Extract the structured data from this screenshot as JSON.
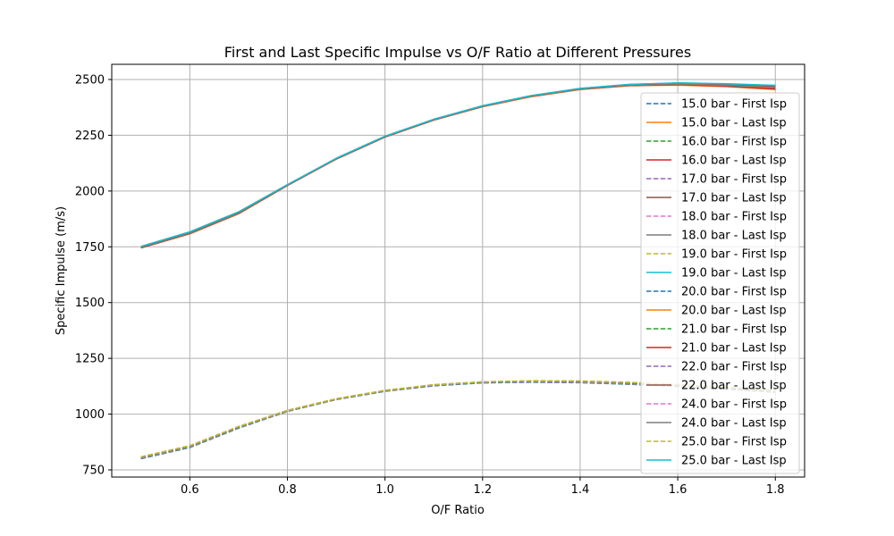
{
  "chart_data": {
    "type": "line",
    "title": "First and Last Specific Impulse vs O/F Ratio at Different Pressures",
    "xlabel": "O/F Ratio",
    "ylabel": "Specific Impulse (m/s)",
    "xlim": [
      0.44,
      1.86
    ],
    "ylim": [
      718,
      2568
    ],
    "xticks": [
      0.6,
      0.8,
      1.0,
      1.2,
      1.4,
      1.6,
      1.8
    ],
    "xtick_labels": [
      "0.6",
      "0.8",
      "1.0",
      "1.2",
      "1.4",
      "1.6",
      "1.8"
    ],
    "yticks": [
      750,
      1000,
      1250,
      1500,
      1750,
      2000,
      2250,
      2500
    ],
    "ytick_labels": [
      "750",
      "1000",
      "1250",
      "1500",
      "1750",
      "2000",
      "2250",
      "2500"
    ],
    "grid": true,
    "legend_position": "right",
    "x": [
      0.5,
      0.6,
      0.7,
      0.8,
      0.9,
      1.0,
      1.1,
      1.2,
      1.3,
      1.4,
      1.5,
      1.6,
      1.7,
      1.8
    ],
    "series": [
      {
        "name": "15.0 bar - First Isp",
        "color": "#1f77b4",
        "dashed": true,
        "values": [
          800,
          850,
          937,
          1012,
          1065,
          1102,
          1127,
          1140,
          1143,
          1141,
          1134,
          1124,
          1112,
          1098
        ]
      },
      {
        "name": "15.0 bar - Last Isp",
        "color": "#ff7f0e",
        "dashed": false,
        "values": [
          1745,
          1808,
          1898,
          2025,
          2143,
          2242,
          2318,
          2378,
          2423,
          2455,
          2472,
          2475,
          2468,
          2455
        ]
      },
      {
        "name": "16.0 bar - First Isp",
        "color": "#2ca02c",
        "dashed": true,
        "values": [
          801,
          851,
          938,
          1013,
          1066,
          1103,
          1128,
          1141,
          1144,
          1142,
          1135,
          1125,
          1113,
          1099
        ]
      },
      {
        "name": "16.0 bar - Last Isp",
        "color": "#d62728",
        "dashed": false,
        "values": [
          1745,
          1809,
          1899,
          2025,
          2143,
          2242,
          2318,
          2378,
          2424,
          2456,
          2473,
          2477,
          2470,
          2458
        ]
      },
      {
        "name": "17.0 bar - First Isp",
        "color": "#9467bd",
        "dashed": true,
        "values": [
          802,
          852,
          939,
          1013,
          1066,
          1103,
          1129,
          1142,
          1145,
          1143,
          1136,
          1126,
          1114,
          1100
        ]
      },
      {
        "name": "17.0 bar - Last Isp",
        "color": "#8c564b",
        "dashed": false,
        "values": [
          1746,
          1810,
          1900,
          2026,
          2144,
          2243,
          2319,
          2379,
          2425,
          2457,
          2474,
          2479,
          2472,
          2462
        ]
      },
      {
        "name": "18.0 bar - First Isp",
        "color": "#e377c2",
        "dashed": true,
        "values": [
          803,
          853,
          940,
          1014,
          1067,
          1104,
          1129,
          1142,
          1146,
          1144,
          1137,
          1127,
          1115,
          1101
        ]
      },
      {
        "name": "18.0 bar - Last Isp",
        "color": "#7f7f7f",
        "dashed": false,
        "values": [
          1747,
          1811,
          1901,
          2026,
          2144,
          2243,
          2319,
          2379,
          2425,
          2457,
          2475,
          2480,
          2474,
          2465
        ]
      },
      {
        "name": "19.0 bar - First Isp",
        "color": "#bcbd22",
        "dashed": true,
        "values": [
          804,
          854,
          941,
          1014,
          1067,
          1104,
          1130,
          1143,
          1147,
          1145,
          1138,
          1128,
          1116,
          1102
        ]
      },
      {
        "name": "19.0 bar - Last Isp",
        "color": "#17becf",
        "dashed": false,
        "values": [
          1748,
          1812,
          1902,
          2027,
          2145,
          2244,
          2320,
          2380,
          2426,
          2458,
          2476,
          2481,
          2476,
          2467
        ]
      },
      {
        "name": "20.0 bar - First Isp",
        "color": "#1f77b4",
        "dashed": true,
        "values": [
          805,
          855,
          941,
          1015,
          1068,
          1105,
          1130,
          1143,
          1147,
          1146,
          1139,
          1129,
          1117,
          1103
        ]
      },
      {
        "name": "20.0 bar - Last Isp",
        "color": "#ff7f0e",
        "dashed": false,
        "values": [
          1749,
          1813,
          1903,
          2027,
          2145,
          2244,
          2320,
          2380,
          2426,
          2458,
          2476,
          2482,
          2477,
          2469
        ]
      },
      {
        "name": "21.0 bar - First Isp",
        "color": "#2ca02c",
        "dashed": true,
        "values": [
          806,
          856,
          942,
          1015,
          1068,
          1105,
          1131,
          1144,
          1148,
          1147,
          1140,
          1130,
          1118,
          1104
        ]
      },
      {
        "name": "21.0 bar - Last Isp",
        "color": "#d62728",
        "dashed": false,
        "values": [
          1749,
          1814,
          1904,
          2027,
          2145,
          2244,
          2320,
          2381,
          2427,
          2459,
          2477,
          2483,
          2478,
          2470
        ]
      },
      {
        "name": "22.0 bar - First Isp",
        "color": "#9467bd",
        "dashed": true,
        "values": [
          806,
          857,
          943,
          1016,
          1068,
          1106,
          1131,
          1144,
          1148,
          1147,
          1141,
          1131,
          1119,
          1105
        ]
      },
      {
        "name": "22.0 bar - Last Isp",
        "color": "#8c564b",
        "dashed": false,
        "values": [
          1750,
          1814,
          1904,
          2028,
          2146,
          2245,
          2321,
          2381,
          2427,
          2459,
          2477,
          2483,
          2479,
          2471
        ]
      },
      {
        "name": "24.0 bar - First Isp",
        "color": "#e377c2",
        "dashed": true,
        "values": [
          808,
          858,
          944,
          1016,
          1069,
          1106,
          1132,
          1145,
          1149,
          1148,
          1142,
          1132,
          1120,
          1107
        ]
      },
      {
        "name": "24.0 bar - Last Isp",
        "color": "#7f7f7f",
        "dashed": false,
        "values": [
          1751,
          1816,
          1906,
          2028,
          2146,
          2245,
          2321,
          2382,
          2428,
          2460,
          2478,
          2484,
          2480,
          2473
        ]
      },
      {
        "name": "25.0 bar - First Isp",
        "color": "#bcbd22",
        "dashed": true,
        "values": [
          809,
          859,
          945,
          1017,
          1069,
          1107,
          1132,
          1145,
          1150,
          1149,
          1143,
          1133,
          1121,
          1108
        ]
      },
      {
        "name": "25.0 bar - Last Isp",
        "color": "#17becf",
        "dashed": false,
        "values": [
          1752,
          1817,
          1907,
          2029,
          2147,
          2246,
          2322,
          2382,
          2428,
          2460,
          2478,
          2485,
          2481,
          2474
        ]
      }
    ]
  }
}
